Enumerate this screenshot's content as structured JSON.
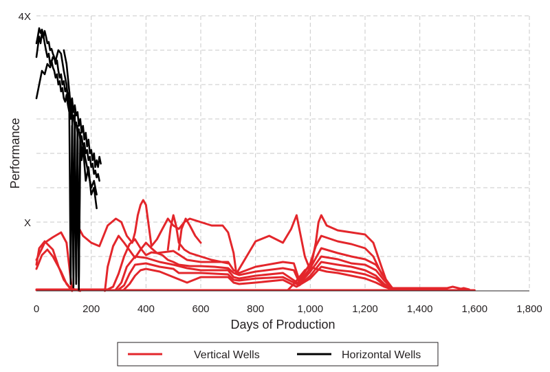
{
  "chart_data": {
    "type": "line",
    "title": "",
    "xlabel": "Days of Production",
    "ylabel": "Performance",
    "xlim": [
      0,
      1800
    ],
    "ylim": [
      0,
      4
    ],
    "x_ticks": [
      0,
      200,
      400,
      600,
      800,
      1000,
      1200,
      1400,
      1600,
      1800
    ],
    "x_tick_labels": [
      "0",
      "200",
      "400",
      "600",
      "800",
      "1,000",
      "1,200",
      "1,400",
      "1,600",
      "1,800"
    ],
    "y_ticks": [
      0,
      0.5,
      1,
      1.5,
      2,
      2.5,
      3,
      3.5,
      4
    ],
    "y_tick_labels": [
      {
        "value": 4,
        "label": "4X"
      },
      {
        "value": 1,
        "label": "X"
      }
    ],
    "grid": true,
    "legend_position": "bottom",
    "colors": {
      "vertical": "#e3262b",
      "horizontal": "#000000"
    },
    "legend": [
      {
        "label": "Vertical Wells",
        "color": "#e3262b"
      },
      {
        "label": "Horizontal Wells",
        "color": "#000000"
      }
    ],
    "series": [
      {
        "group": "vertical",
        "x": [
          0,
          10,
          30,
          60,
          80,
          100,
          120,
          140,
          160
        ],
        "y": [
          0.38,
          0.62,
          0.72,
          0.6,
          0.36,
          0.16,
          0.06,
          0.02,
          0
        ]
      },
      {
        "group": "vertical",
        "x": [
          0,
          20,
          40,
          60,
          90,
          110,
          130
        ],
        "y": [
          0.32,
          0.52,
          0.6,
          0.5,
          0.28,
          0.1,
          0
        ]
      },
      {
        "group": "vertical",
        "x": [
          0,
          30,
          60,
          90,
          110,
          130
        ],
        "y": [
          0.45,
          0.7,
          0.78,
          0.85,
          0.7,
          0
        ]
      },
      {
        "group": "vertical",
        "x": [
          140,
          150,
          170,
          200,
          230,
          260,
          290,
          310,
          330,
          350,
          360,
          370,
          380,
          390,
          400,
          410,
          420,
          440,
          460,
          480,
          500,
          520,
          540,
          560,
          600,
          640,
          680,
          700,
          720,
          730,
          760,
          800,
          850,
          900,
          930,
          950,
          960,
          980,
          1000,
          1020,
          1030,
          1040,
          1060,
          1100,
          1150,
          1200,
          1230,
          1260,
          1280,
          1300,
          1400,
          1500,
          1520,
          1550,
          1560,
          1580
        ],
        "y": [
          0.9,
          0.95,
          0.8,
          0.7,
          0.65,
          0.95,
          1.05,
          1.0,
          0.8,
          0.7,
          0.85,
          1.1,
          1.25,
          1.32,
          1.25,
          0.95,
          0.65,
          0.75,
          0.9,
          1.05,
          0.95,
          0.9,
          1.0,
          1.05,
          1.0,
          0.95,
          0.95,
          0.85,
          0.55,
          0.25,
          0.45,
          0.72,
          0.8,
          0.7,
          0.9,
          1.1,
          0.9,
          0.5,
          0.3,
          0.7,
          1.0,
          1.1,
          0.95,
          0.88,
          0.85,
          0.82,
          0.7,
          0.35,
          0.12,
          0.04,
          0.04,
          0.04,
          0.06,
          0.03,
          0.04,
          0.02
        ]
      },
      {
        "group": "vertical",
        "x": [
          250,
          260,
          280,
          300,
          320,
          360,
          380,
          400,
          420,
          440,
          500,
          550,
          600,
          650,
          700,
          720,
          740,
          800,
          900,
          940,
          960,
          1000,
          1020,
          1040,
          1100,
          1150,
          1200,
          1230,
          1260,
          1300
        ],
        "y": [
          0,
          0.35,
          0.65,
          0.8,
          0.7,
          0.48,
          0.6,
          0.7,
          0.62,
          0.55,
          0.58,
          0.45,
          0.42,
          0.42,
          0.42,
          0.3,
          0.26,
          0.35,
          0.42,
          0.4,
          0.15,
          0.4,
          0.65,
          0.8,
          0.72,
          0.68,
          0.62,
          0.5,
          0.25,
          0.04
        ]
      },
      {
        "group": "vertical",
        "x": [
          0,
          20,
          60,
          100,
          140,
          180,
          220,
          260,
          280,
          300,
          320,
          340,
          360,
          380,
          400,
          420,
          440,
          460,
          480,
          500,
          520,
          560,
          600,
          650,
          700,
          720,
          740,
          800,
          900,
          940,
          960,
          1000,
          1040,
          1100,
          1150,
          1200,
          1240,
          1270,
          1300
        ],
        "y": [
          0.02,
          0.02,
          0.02,
          0.02,
          0.02,
          0.02,
          0.02,
          0.02,
          0.06,
          0.25,
          0.5,
          0.68,
          0.75,
          0.62,
          0.52,
          0.56,
          0.55,
          0.52,
          0.45,
          0.42,
          0.38,
          0.36,
          0.36,
          0.35,
          0.33,
          0.26,
          0.23,
          0.28,
          0.33,
          0.3,
          0.12,
          0.33,
          0.62,
          0.55,
          0.5,
          0.46,
          0.38,
          0.2,
          0.03
        ]
      },
      {
        "group": "vertical",
        "x": [
          290,
          310,
          330,
          360,
          400,
          450,
          500,
          550,
          600,
          700,
          720,
          740,
          800,
          900,
          960,
          1000,
          1040,
          1100,
          1150,
          1200,
          1240,
          1270,
          1300
        ],
        "y": [
          0.02,
          0.12,
          0.35,
          0.5,
          0.48,
          0.42,
          0.38,
          0.33,
          0.3,
          0.3,
          0.2,
          0.18,
          0.22,
          0.26,
          0.1,
          0.28,
          0.5,
          0.46,
          0.4,
          0.38,
          0.3,
          0.15,
          0.03
        ]
      },
      {
        "group": "vertical",
        "x": [
          300,
          320,
          340,
          360,
          400,
          450,
          500,
          520,
          600,
          700,
          720,
          740,
          800,
          900,
          960,
          1000,
          1040,
          1100,
          1150,
          1200,
          1240,
          1270,
          1300
        ],
        "y": [
          0.02,
          0.08,
          0.25,
          0.38,
          0.4,
          0.35,
          0.32,
          0.26,
          0.26,
          0.24,
          0.16,
          0.15,
          0.18,
          0.2,
          0.08,
          0.22,
          0.42,
          0.38,
          0.35,
          0.3,
          0.22,
          0.1,
          0.02
        ]
      },
      {
        "group": "vertical",
        "x": [
          320,
          340,
          360,
          380,
          400,
          450,
          500,
          550,
          600,
          700,
          720,
          740,
          800,
          900,
          950,
          1000,
          1040,
          1100,
          1150,
          1200,
          1240,
          1270,
          1300
        ],
        "y": [
          0.02,
          0.1,
          0.22,
          0.3,
          0.32,
          0.28,
          0.2,
          0.12,
          0.2,
          0.2,
          0.12,
          0.1,
          0.12,
          0.16,
          0.06,
          0.18,
          0.35,
          0.3,
          0.28,
          0.24,
          0.18,
          0.08,
          0.02
        ]
      },
      {
        "group": "vertical",
        "x": [
          480,
          490,
          500,
          510,
          520,
          540,
          560,
          600,
          640,
          700
        ],
        "y": [
          0.6,
          0.92,
          1.1,
          0.95,
          0.7,
          0.6,
          0.55,
          0.5,
          0.45,
          0.4
        ]
      },
      {
        "group": "vertical",
        "x": [
          520,
          530,
          545,
          560,
          580,
          600
        ],
        "y": [
          0.6,
          0.9,
          1.05,
          0.95,
          0.8,
          0.7
        ]
      },
      {
        "group": "vertical",
        "x": [
          920,
          940,
          960,
          980,
          1000,
          1020,
          1060,
          1100,
          1150,
          1200,
          1240,
          1270,
          1300
        ],
        "y": [
          0.02,
          0.1,
          0.2,
          0.3,
          0.35,
          0.32,
          0.28,
          0.26,
          0.22,
          0.18,
          0.12,
          0.06,
          0.02
        ]
      },
      {
        "group": "vertical",
        "x": [
          0,
          200,
          400,
          600,
          800,
          1000,
          1200,
          1400,
          1600
        ],
        "y": [
          0.01,
          0.01,
          0.01,
          0.01,
          0.01,
          0.01,
          0.01,
          0.01,
          0.01
        ]
      },
      {
        "group": "horizontal",
        "x": [
          0,
          5,
          10,
          15,
          20,
          25,
          30,
          35,
          40,
          45,
          50,
          55,
          60,
          65,
          70,
          75,
          80,
          85,
          90,
          95,
          100,
          105,
          110,
          115,
          120,
          125,
          130,
          135,
          140,
          145,
          150,
          155,
          160,
          165,
          170,
          175,
          180,
          185,
          190,
          195,
          200,
          205,
          210,
          215,
          220,
          225,
          230,
          235
        ],
        "y": [
          3.4,
          3.55,
          3.7,
          3.6,
          3.75,
          3.68,
          3.78,
          3.7,
          3.6,
          3.62,
          3.5,
          3.52,
          3.45,
          3.4,
          3.3,
          3.35,
          3.2,
          3.1,
          3.15,
          3.0,
          3.05,
          2.9,
          2.95,
          2.8,
          2.9,
          2.7,
          2.8,
          2.6,
          2.7,
          2.55,
          2.6,
          2.4,
          2.5,
          2.3,
          2.4,
          2.2,
          2.3,
          2.1,
          2.2,
          2.0,
          2.05,
          1.9,
          2.0,
          1.8,
          1.9,
          1.8,
          1.95,
          1.85
        ]
      },
      {
        "group": "horizontal",
        "x": [
          0,
          5,
          10,
          15,
          20,
          25,
          30,
          35,
          40,
          45,
          50,
          55,
          60,
          65,
          70,
          75,
          80,
          85,
          90,
          95,
          100,
          105,
          110,
          115,
          120,
          125,
          130,
          135,
          140,
          145,
          150,
          155,
          160,
          165,
          170,
          175,
          180,
          185,
          190,
          195,
          200,
          205,
          210,
          215,
          220,
          225,
          230
        ],
        "y": [
          3.6,
          3.7,
          3.82,
          3.75,
          3.8,
          3.72,
          3.6,
          3.5,
          3.4,
          3.45,
          3.3,
          3.35,
          3.25,
          3.2,
          3.1,
          3.15,
          3.0,
          3.05,
          2.9,
          2.95,
          2.8,
          2.75,
          2.85,
          2.7,
          2.6,
          2.65,
          2.5,
          2.55,
          2.4,
          2.45,
          2.3,
          2.35,
          2.2,
          2.25,
          2.1,
          2.15,
          2.0,
          2.05,
          1.9,
          1.95,
          1.8,
          1.85,
          1.7,
          1.75,
          1.65,
          1.7,
          1.6
        ]
      },
      {
        "group": "horizontal",
        "x": [
          0,
          10,
          20,
          30,
          40,
          50,
          60,
          70,
          80,
          90,
          100,
          110,
          120,
          125,
          130,
          135,
          140,
          145,
          150,
          155,
          160,
          170,
          180,
          190,
          200,
          210,
          220
        ],
        "y": [
          2.8,
          3.0,
          3.2,
          3.15,
          3.3,
          3.25,
          3.4,
          3.35,
          3.5,
          3.45,
          3.2,
          3.0,
          2.6,
          0.1,
          2.4,
          0.05,
          2.2,
          0.2,
          2.3,
          0.1,
          2.0,
          2.1,
          1.9,
          1.7,
          1.5,
          1.6,
          1.4
        ]
      },
      {
        "group": "horizontal",
        "x": [
          100,
          110,
          115,
          120,
          125,
          130,
          135,
          140,
          145,
          150,
          155,
          160,
          165,
          170,
          180,
          190,
          200,
          210,
          220
        ],
        "y": [
          3.5,
          3.3,
          3.1,
          2.9,
          2.5,
          2.8,
          0.3,
          2.6,
          0.1,
          2.4,
          0.02,
          2.3,
          1.9,
          2.1,
          1.6,
          1.8,
          1.4,
          1.5,
          1.2
        ]
      }
    ]
  }
}
